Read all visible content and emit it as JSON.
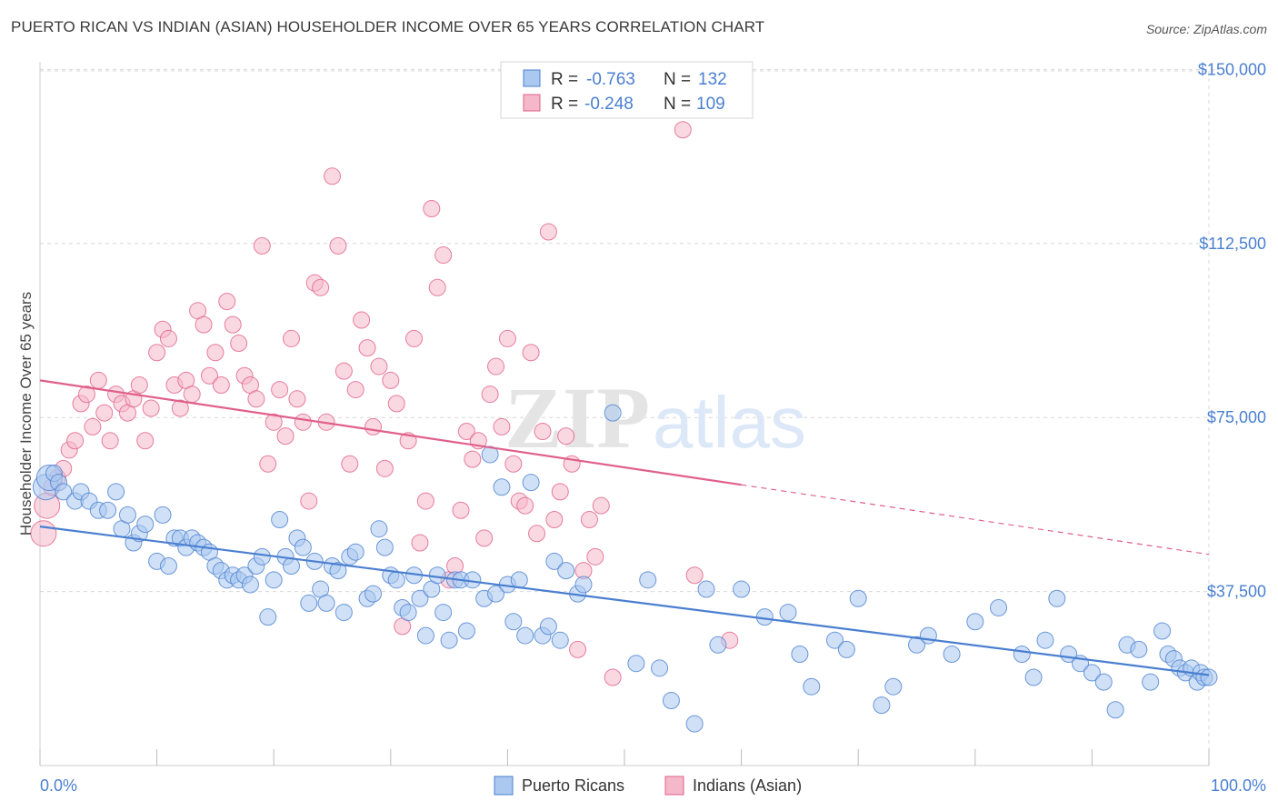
{
  "header": {
    "title": "PUERTO RICAN VS INDIAN (ASIAN) HOUSEHOLDER INCOME OVER 65 YEARS CORRELATION CHART",
    "source": "Source: ZipAtlas.com"
  },
  "watermark": {
    "zip": "ZIP",
    "atlas": "atlas"
  },
  "legend": {
    "r_label": "R =",
    "n_label": "N =",
    "rows": [
      {
        "r": "-0.763",
        "n": "132"
      },
      {
        "r": "-0.248",
        "n": "109"
      }
    ]
  },
  "bottom_legend": [
    "Puerto Ricans",
    "Indians (Asian)"
  ],
  "chart_data": {
    "type": "scatter",
    "title": "PUERTO RICAN VS INDIAN (ASIAN) HOUSEHOLDER INCOME OVER 65 YEARS CORRELATION CHART",
    "ylabel": "Householder Income Over 65 years",
    "x_tick_labels": [
      "0.0%",
      "100.0%"
    ],
    "y_tick_labels": [
      "$150,000",
      "$112,500",
      "$75,000",
      "$37,500"
    ],
    "y_ticks": [
      150000,
      112500,
      75000,
      37500
    ],
    "xlim": [
      0,
      100
    ],
    "ylim": [
      0,
      154000
    ],
    "grid": true,
    "legend_position": "top-center",
    "colors": {
      "blue": "#4a7fd0",
      "blue_fill": "#aac8f0",
      "pink": "#e0608a",
      "pink_fill": "#f5b8cb",
      "grid": "#d8d8d8"
    },
    "series": [
      {
        "name": "Puerto Ricans",
        "color": "#4a7fd0",
        "trend": {
          "x": [
            0,
            100
          ],
          "y": [
            51500,
            19500
          ],
          "dashed_from": null
        },
        "points": [
          [
            0.5,
            60
          ],
          [
            0.8,
            62
          ],
          [
            1.2,
            63
          ],
          [
            1.6,
            61
          ],
          [
            2,
            59
          ],
          [
            3,
            57
          ],
          [
            3.5,
            59
          ],
          [
            4.2,
            57
          ],
          [
            5,
            55
          ],
          [
            5.8,
            55
          ],
          [
            6.5,
            59
          ],
          [
            7,
            51
          ],
          [
            7.5,
            54
          ],
          [
            8,
            48
          ],
          [
            8.5,
            50
          ],
          [
            9,
            52
          ],
          [
            10,
            44
          ],
          [
            10.5,
            54
          ],
          [
            11,
            43
          ],
          [
            11.5,
            49
          ],
          [
            12,
            49
          ],
          [
            12.5,
            47
          ],
          [
            13,
            49
          ],
          [
            13.5,
            48
          ],
          [
            14,
            47
          ],
          [
            14.5,
            46
          ],
          [
            15,
            43
          ],
          [
            15.5,
            42
          ],
          [
            16,
            40
          ],
          [
            16.5,
            41
          ],
          [
            17,
            40
          ],
          [
            17.5,
            41
          ],
          [
            18,
            39
          ],
          [
            18.5,
            43
          ],
          [
            19,
            45
          ],
          [
            19.5,
            32
          ],
          [
            20,
            40
          ],
          [
            20.5,
            53
          ],
          [
            21,
            45
          ],
          [
            21.5,
            43
          ],
          [
            22,
            49
          ],
          [
            22.5,
            47
          ],
          [
            23,
            35
          ],
          [
            23.5,
            44
          ],
          [
            24,
            38
          ],
          [
            24.5,
            35
          ],
          [
            25,
            43
          ],
          [
            25.5,
            42
          ],
          [
            26,
            33
          ],
          [
            26.5,
            45
          ],
          [
            27,
            46
          ],
          [
            28,
            36
          ],
          [
            28.5,
            37
          ],
          [
            29,
            51
          ],
          [
            29.5,
            47
          ],
          [
            30,
            41
          ],
          [
            30.5,
            40
          ],
          [
            31,
            34
          ],
          [
            31.5,
            33
          ],
          [
            32,
            41
          ],
          [
            32.5,
            36
          ],
          [
            33,
            28
          ],
          [
            33.5,
            38
          ],
          [
            34,
            41
          ],
          [
            34.5,
            33
          ],
          [
            35,
            27
          ],
          [
            35.5,
            40
          ],
          [
            36,
            40
          ],
          [
            36.5,
            29
          ],
          [
            37,
            40
          ],
          [
            38,
            36
          ],
          [
            38.5,
            67
          ],
          [
            39,
            37
          ],
          [
            39.5,
            60
          ],
          [
            40,
            39
          ],
          [
            40.5,
            31
          ],
          [
            41,
            40
          ],
          [
            41.5,
            28
          ],
          [
            42,
            61
          ],
          [
            43,
            28
          ],
          [
            43.5,
            30
          ],
          [
            44,
            44
          ],
          [
            44.5,
            27
          ],
          [
            45,
            42
          ],
          [
            46,
            37
          ],
          [
            46.5,
            39
          ],
          [
            49,
            76
          ],
          [
            51,
            22
          ],
          [
            52,
            40
          ],
          [
            53,
            21
          ],
          [
            54,
            14
          ],
          [
            56,
            9
          ],
          [
            57,
            38
          ],
          [
            58,
            26
          ],
          [
            60,
            38
          ],
          [
            62,
            32
          ],
          [
            64,
            33
          ],
          [
            65,
            24
          ],
          [
            66,
            17
          ],
          [
            68,
            27
          ],
          [
            69,
            25
          ],
          [
            70,
            36
          ],
          [
            72,
            13
          ],
          [
            73,
            17
          ],
          [
            75,
            26
          ],
          [
            76,
            28
          ],
          [
            78,
            24
          ],
          [
            80,
            31
          ],
          [
            82,
            34
          ],
          [
            84,
            24
          ],
          [
            85,
            19
          ],
          [
            86,
            27
          ],
          [
            87,
            36
          ],
          [
            88,
            24
          ],
          [
            89,
            22
          ],
          [
            90,
            20
          ],
          [
            91,
            18
          ],
          [
            92,
            12
          ],
          [
            93,
            26
          ],
          [
            94,
            25
          ],
          [
            95,
            18
          ],
          [
            96,
            29
          ],
          [
            96.5,
            24
          ],
          [
            97,
            23
          ],
          [
            97.5,
            21
          ],
          [
            98,
            20
          ],
          [
            98.5,
            21
          ],
          [
            99,
            18
          ],
          [
            99.3,
            20
          ],
          [
            99.6,
            19
          ],
          [
            100,
            19
          ]
        ],
        "point_units": "x in percent, y in thousands of dollars"
      },
      {
        "name": "Indians (Asian)",
        "color": "#e0608a",
        "trend": {
          "x": [
            0,
            100
          ],
          "y": [
            83000,
            45500
          ],
          "dashed_from": 60
        },
        "points": [
          [
            0.3,
            50
          ],
          [
            0.6,
            56
          ],
          [
            1,
            60
          ],
          [
            1.5,
            62
          ],
          [
            2,
            64
          ],
          [
            2.5,
            68
          ],
          [
            3,
            70
          ],
          [
            3.5,
            78
          ],
          [
            4,
            80
          ],
          [
            4.5,
            73
          ],
          [
            5,
            83
          ],
          [
            5.5,
            76
          ],
          [
            6,
            70
          ],
          [
            6.5,
            80
          ],
          [
            7,
            78
          ],
          [
            7.5,
            76
          ],
          [
            8,
            79
          ],
          [
            8.5,
            82
          ],
          [
            9,
            70
          ],
          [
            9.5,
            77
          ],
          [
            10,
            89
          ],
          [
            10.5,
            94
          ],
          [
            11,
            92
          ],
          [
            11.5,
            82
          ],
          [
            12,
            77
          ],
          [
            12.5,
            83
          ],
          [
            13,
            80
          ],
          [
            13.5,
            98
          ],
          [
            14,
            95
          ],
          [
            14.5,
            84
          ],
          [
            15,
            89
          ],
          [
            15.5,
            82
          ],
          [
            16,
            100
          ],
          [
            16.5,
            95
          ],
          [
            17,
            91
          ],
          [
            17.5,
            84
          ],
          [
            18,
            82
          ],
          [
            18.5,
            79
          ],
          [
            19,
            112
          ],
          [
            19.5,
            65
          ],
          [
            20,
            74
          ],
          [
            20.5,
            81
          ],
          [
            21,
            71
          ],
          [
            21.5,
            92
          ],
          [
            22,
            79
          ],
          [
            22.5,
            74
          ],
          [
            23,
            57
          ],
          [
            23.5,
            104
          ],
          [
            24,
            103
          ],
          [
            24.5,
            74
          ],
          [
            25,
            127
          ],
          [
            25.5,
            112
          ],
          [
            26,
            85
          ],
          [
            26.5,
            65
          ],
          [
            27,
            81
          ],
          [
            27.5,
            96
          ],
          [
            28,
            90
          ],
          [
            28.5,
            73
          ],
          [
            29,
            86
          ],
          [
            29.5,
            64
          ],
          [
            30,
            83
          ],
          [
            30.5,
            78
          ],
          [
            31,
            30
          ],
          [
            31.5,
            70
          ],
          [
            32,
            92
          ],
          [
            32.5,
            48
          ],
          [
            33,
            57
          ],
          [
            33.5,
            120
          ],
          [
            34,
            103
          ],
          [
            34.5,
            110
          ],
          [
            35,
            40
          ],
          [
            35.5,
            43
          ],
          [
            36,
            55
          ],
          [
            36.5,
            72
          ],
          [
            37,
            66
          ],
          [
            37.5,
            70
          ],
          [
            38,
            49
          ],
          [
            38.5,
            80
          ],
          [
            39,
            86
          ],
          [
            39.5,
            73
          ],
          [
            40,
            92
          ],
          [
            40.5,
            65
          ],
          [
            41,
            57
          ],
          [
            41.5,
            56
          ],
          [
            42,
            89
          ],
          [
            42.5,
            50
          ],
          [
            43,
            72
          ],
          [
            43.5,
            115
          ],
          [
            44,
            53
          ],
          [
            44.5,
            59
          ],
          [
            45,
            71
          ],
          [
            45.5,
            65
          ],
          [
            46,
            25
          ],
          [
            46.5,
            42
          ],
          [
            47,
            53
          ],
          [
            47.5,
            45
          ],
          [
            48,
            56
          ],
          [
            49,
            19
          ],
          [
            55,
            137
          ],
          [
            56,
            41
          ],
          [
            59,
            27
          ]
        ],
        "point_units": "x in percent, y in thousands of dollars"
      }
    ]
  }
}
